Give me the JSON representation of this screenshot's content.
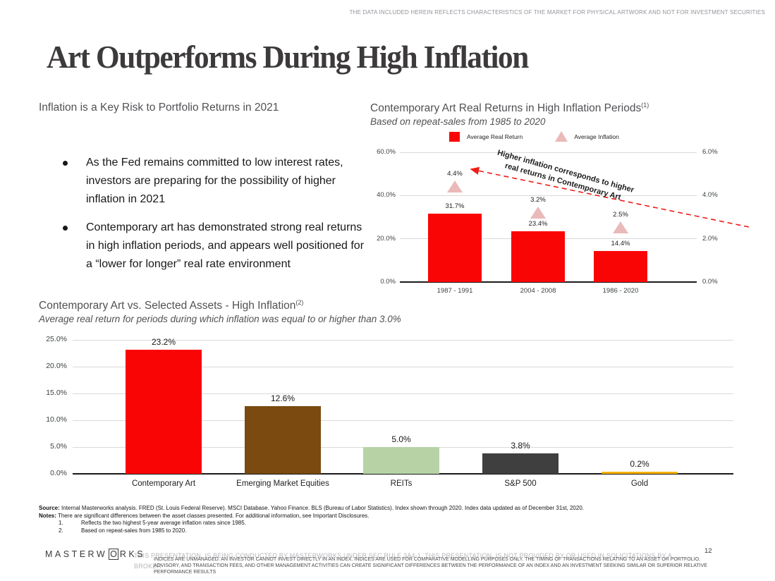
{
  "header": {
    "top_disclaimer": "THE DATA INCLUDED HEREIN REFLECTS CHARACTERISTICS OF THE MARKET FOR PHYSICAL ARTWORK AND NOT FOR INVESTMENT SECURITIES",
    "title": "Art Outperforms During High Inflation"
  },
  "left_column": {
    "heading": "Inflation is a Key Risk to Portfolio Returns in 2021",
    "bullets": [
      "As the Fed remains committed to low interest rates, investors are preparing for the possibility of higher inflation in 2021",
      "Contemporary art has demonstrated strong real returns in high inflation periods, and appears well positioned for a “lower for longer” real rate environment"
    ]
  },
  "chart_data": [
    {
      "type": "bar",
      "title": "Contemporary Art Real Returns in High Inflation Periods",
      "title_sup": "(1)",
      "subtitle": "Based on repeat-sales from 1985 to 2020",
      "categories": [
        "1987 - 1991",
        "2004 - 2008",
        "1986 - 2020"
      ],
      "series": [
        {
          "name": "Average Real Return",
          "marker": "bar",
          "axis": "left",
          "color": "#fa0505",
          "values": [
            31.7,
            23.4,
            14.4
          ],
          "labels": [
            "31.7%",
            "23.4%",
            "14.4%"
          ]
        },
        {
          "name": "Average Inflation",
          "marker": "triangle",
          "axis": "right",
          "color": "#eab9ba",
          "values": [
            4.4,
            3.2,
            2.5
          ],
          "labels": [
            "4.4%",
            "3.2%",
            "2.5%"
          ]
        }
      ],
      "left_axis": {
        "min": 0,
        "max": 60,
        "ticks": [
          "60.0%",
          "40.0%",
          "20.0%",
          "0.0%"
        ]
      },
      "right_axis": {
        "min": 0,
        "max": 6,
        "ticks": [
          "6.0%",
          "4.0%",
          "2.0%",
          "0.0%"
        ]
      },
      "annotation_lines": [
        "Higher inflation corresponds to higher",
        "real returns in Contemporary Art"
      ],
      "annotation_arrow_color": "#ed1c16",
      "legend_position": "top",
      "grid": true
    },
    {
      "type": "bar",
      "title": "Contemporary Art vs. Selected Assets - High Inflation",
      "title_sup": "(2)",
      "subtitle": "Average real return for periods during which inflation was equal to or higher than 3.0%",
      "categories": [
        "Contemporary Art",
        "Emerging Market Equities",
        "REITs",
        "S&P 500",
        "Gold"
      ],
      "values": [
        23.2,
        12.6,
        5.0,
        3.8,
        0.2
      ],
      "labels": [
        "23.2%",
        "12.6%",
        "5.0%",
        "3.8%",
        "0.2%"
      ],
      "bar_colors": [
        "#fa0505",
        "#7a4a10",
        "#b7d3a6",
        "#3f3f3f",
        "#f7b10c"
      ],
      "y_axis": {
        "min": 0,
        "max": 25,
        "ticks": [
          "25.0%",
          "20.0%",
          "15.0%",
          "10.0%",
          "5.0%",
          "0.0%"
        ]
      },
      "grid": true
    }
  ],
  "footnotes": {
    "source_label": "Source:",
    "source_text": " Internal Masterworks analysis. FRED (St. Louis Federal Reserve). MSCI Database. Yahoo Finance. BLS (Bureau of Labor Statistics). Index shown through 2020. Index data updated as of December 31st, 2020.",
    "notes_label": "Notes:",
    "notes_text": " There are significant differences between the asset classes presented. For additional information, see Important Disclosures.",
    "numbered": [
      {
        "num": "1.",
        "text": "Reflects the two highest 5-year average inflation rates since 1985."
      },
      {
        "num": "2.",
        "text": "Based on repeat-sales from 1985 to 2020."
      }
    ]
  },
  "footer": {
    "logo_part1": "MASTERW",
    "logo_boxed": "O",
    "logo_part2": "RKS",
    "disclaimer_light_line1": "THIS PRESENTATION, IS BEING CONDUCTED BY MASTERWORKS UNDER SEC RULE 3A4-1. THIS PRESENTATION, IS NOT PROVIDED BY OR USED IN SOLICITATIONS BY A",
    "disclaimer_light_line2": "BROKER",
    "disclaimer_dark": "INDICES ARE UNMANAGED. AN INVESTOR CANNOT INVEST DIRECTLY IN AN INDEX. INDICES ARE USED FOR COMPARATIVE MODELLING PURPOSES ONLY. THE TIMING OF TRANSACTIONS RELATING TO AN ASSET OR PORTFOLIO, ADVISORY, AND TRANSACTION FEES, AND OTHER MANAGEMENT ACTIVITIES CAN CREATE SIGNIFICANT DIFFERENCES BETWEEN THE PERFORMANCE OF AN INDEX AND AN INVESTMENT SEEKING SIMILAR OR SUPERIOR RELATIVE PERFORMANCE RESULTS",
    "page_number": "12"
  },
  "colors": {
    "accent_red": "#fa0505",
    "inflation_pink": "#eab9ba",
    "brown": "#7a4a10",
    "light_green": "#b7d3a6",
    "dark_gray": "#3f3f3f",
    "gold": "#f7b10c",
    "arrow_red": "#ed1c16",
    "gridline": "#d9d9d9"
  }
}
